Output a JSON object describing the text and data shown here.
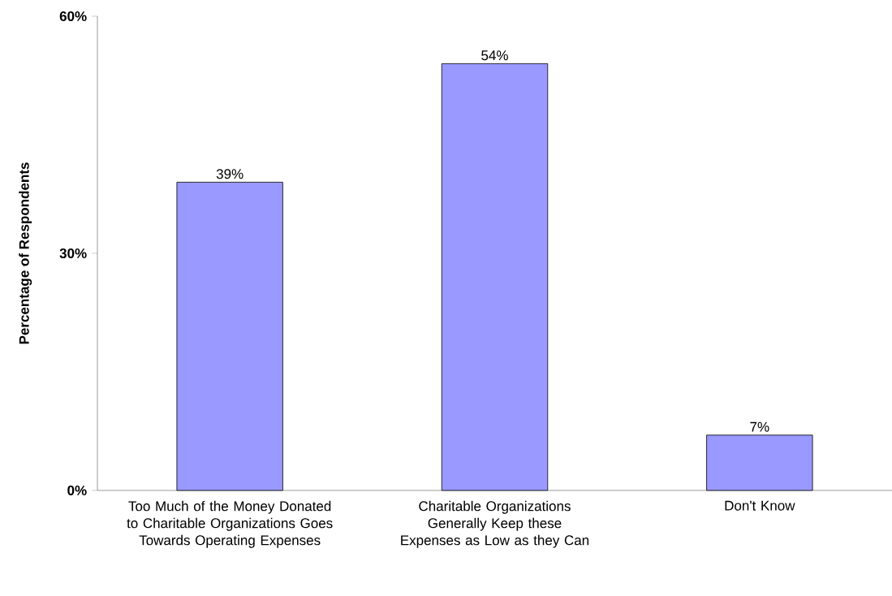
{
  "chart_data": {
    "type": "bar",
    "ylabel": "Percentage of Respondents",
    "categories": [
      "Too Much of the Money Donated to Charitable Organizations Goes Towards Operating Expenses",
      "Charitable Organizations Generally Keep these Expenses as Low as they Can",
      "Don't Know"
    ],
    "values": [
      39,
      54,
      7
    ],
    "value_labels": [
      "39%",
      "54%",
      "7%"
    ],
    "color": "#9999ff",
    "ylim": [
      0,
      60
    ],
    "yticks": [
      {
        "value": 0,
        "label": "0%"
      },
      {
        "value": 30,
        "label": "30%"
      },
      {
        "value": 60,
        "label": "60%"
      }
    ]
  }
}
